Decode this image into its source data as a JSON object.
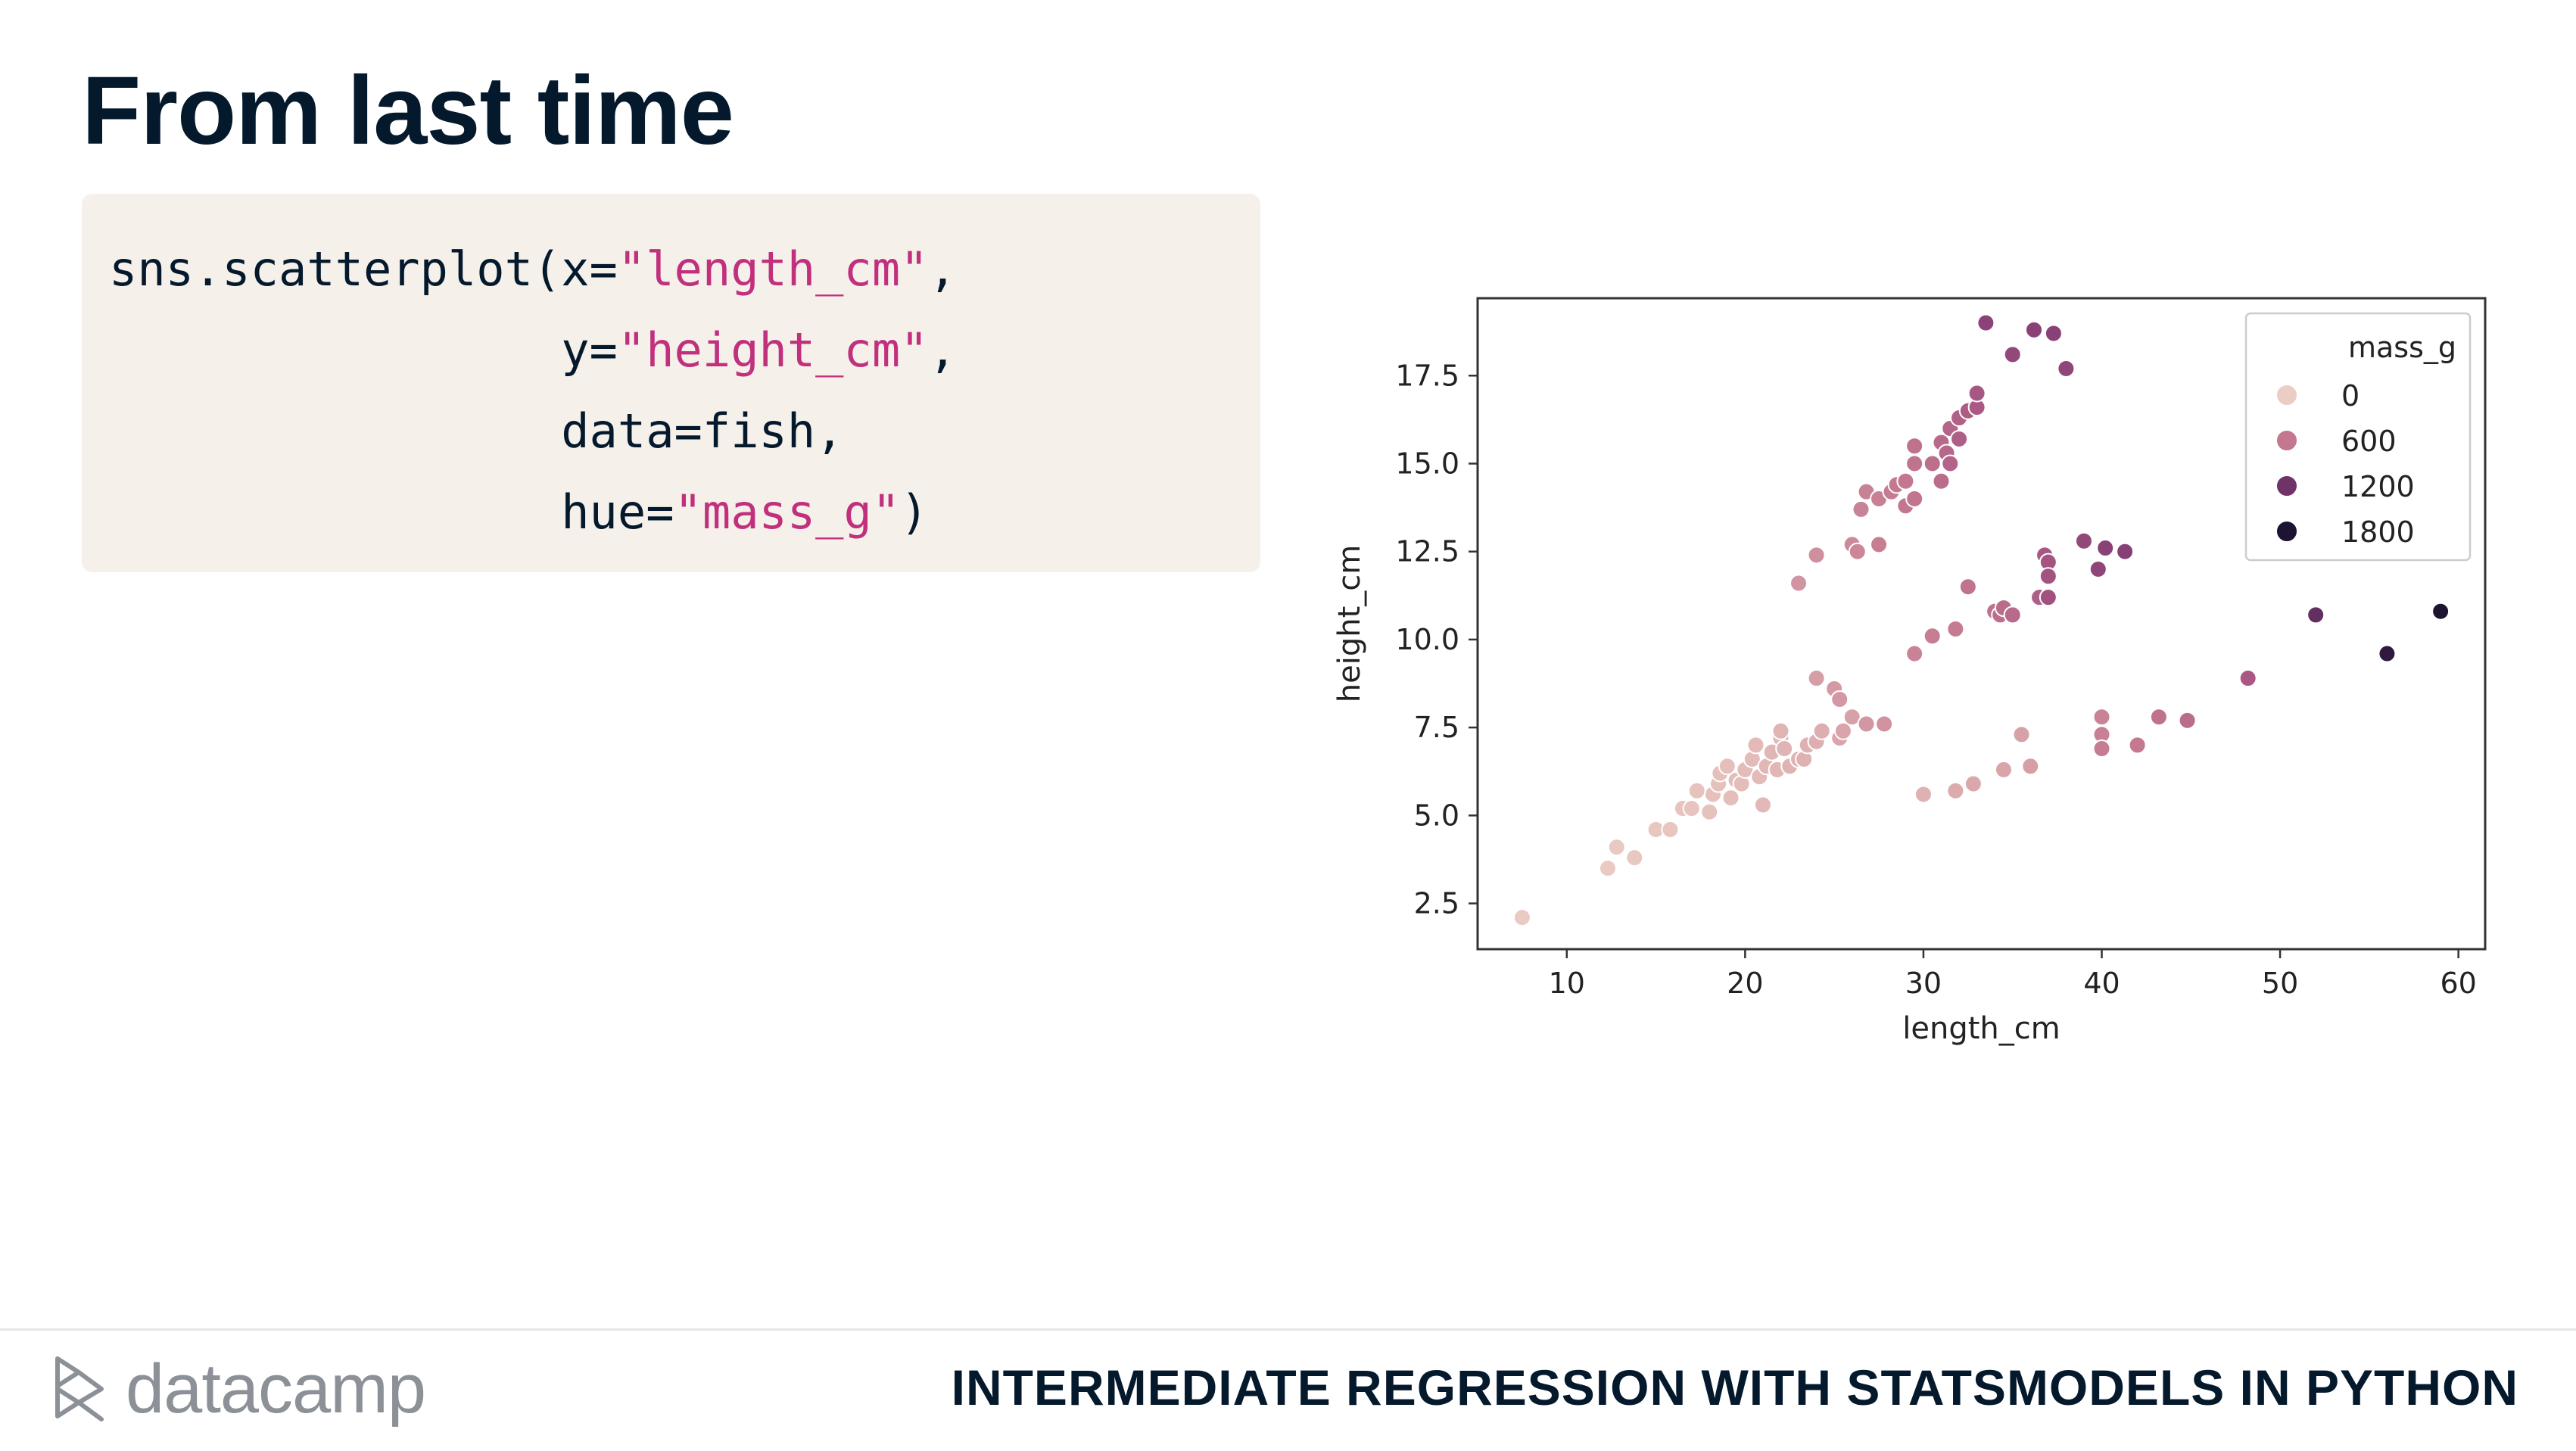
{
  "slide": {
    "title": "From last time"
  },
  "code": {
    "lines": [
      [
        {
          "t": "sns.scatterplot(x=",
          "s": false
        },
        {
          "t": "\"length_cm\"",
          "s": true
        },
        {
          "t": ",",
          "s": false
        }
      ],
      [
        {
          "t": "                y=",
          "s": false
        },
        {
          "t": "\"height_cm\"",
          "s": true
        },
        {
          "t": ",",
          "s": false
        }
      ],
      [
        {
          "t": "                data=fish,",
          "s": false
        }
      ],
      [
        {
          "t": "                hue=",
          "s": false
        },
        {
          "t": "\"mass_g\"",
          "s": true
        },
        {
          "t": ")",
          "s": false
        }
      ]
    ],
    "colors": {
      "text": "#05192d",
      "string": "#c1307d",
      "background": "#f5f1ea"
    }
  },
  "chart_data": {
    "type": "scatter",
    "xlabel": "length_cm",
    "ylabel": "height_cm",
    "xlim": [
      5,
      61.5
    ],
    "ylim": [
      1.2,
      19.7
    ],
    "xticks": [
      10,
      20,
      30,
      40,
      50,
      60
    ],
    "xtick_labels": [
      "10",
      "20",
      "30",
      "40",
      "50",
      "60"
    ],
    "yticks": [
      2.5,
      5.0,
      7.5,
      10.0,
      12.5,
      15.0,
      17.5
    ],
    "ytick_labels": [
      "2.5",
      "5.0",
      "7.5",
      "10.0",
      "12.5",
      "15.0",
      "17.5"
    ],
    "grid": false,
    "legend": {
      "title": "mass_g",
      "placement": "top-right",
      "entries": [
        {
          "label": "0",
          "color": "#ebcdc4"
        },
        {
          "label": "600",
          "color": "#c47890"
        },
        {
          "label": "1200",
          "color": "#703369"
        },
        {
          "label": "1800",
          "color": "#1d1431"
        }
      ]
    },
    "hue_colors": [
      "#ebcdc4",
      "#d9a5aa",
      "#c47890",
      "#a65582",
      "#853f74",
      "#5e2c5e",
      "#3c1f47",
      "#1d1431"
    ],
    "hue_range": [
      0,
      1800
    ],
    "points": [
      [
        7.5,
        2.1,
        10
      ],
      [
        12.3,
        3.5,
        20
      ],
      [
        12.8,
        4.1,
        25
      ],
      [
        13.8,
        3.8,
        30
      ],
      [
        15.0,
        4.6,
        40
      ],
      [
        15.8,
        4.6,
        45
      ],
      [
        16.5,
        5.2,
        55
      ],
      [
        17.0,
        5.2,
        60
      ],
      [
        17.3,
        5.7,
        65
      ],
      [
        18.0,
        5.1,
        70
      ],
      [
        18.2,
        5.6,
        75
      ],
      [
        18.5,
        5.9,
        80
      ],
      [
        18.6,
        6.2,
        85
      ],
      [
        19.0,
        6.4,
        90
      ],
      [
        19.2,
        5.5,
        95
      ],
      [
        19.5,
        6.0,
        100
      ],
      [
        19.8,
        5.9,
        105
      ],
      [
        20.0,
        6.3,
        110
      ],
      [
        20.4,
        6.6,
        115
      ],
      [
        20.6,
        7.0,
        120
      ],
      [
        20.8,
        6.1,
        125
      ],
      [
        21.0,
        5.3,
        130
      ],
      [
        21.2,
        6.4,
        135
      ],
      [
        21.5,
        6.8,
        140
      ],
      [
        21.8,
        6.3,
        145
      ],
      [
        22.0,
        7.2,
        150
      ],
      [
        22.0,
        7.4,
        155
      ],
      [
        22.2,
        6.9,
        160
      ],
      [
        22.5,
        6.4,
        165
      ],
      [
        23.0,
        6.6,
        170
      ],
      [
        23.3,
        6.6,
        175
      ],
      [
        23.5,
        7.0,
        180
      ],
      [
        24.0,
        7.1,
        190
      ],
      [
        24.3,
        7.4,
        200
      ],
      [
        25.3,
        7.2,
        250
      ],
      [
        25.5,
        7.4,
        260
      ],
      [
        26.0,
        7.8,
        280
      ],
      [
        24.0,
        8.9,
        300
      ],
      [
        25.0,
        8.6,
        320
      ],
      [
        25.3,
        8.3,
        330
      ],
      [
        26.8,
        7.6,
        340
      ],
      [
        27.8,
        7.6,
        360
      ],
      [
        23.0,
        11.6,
        350
      ],
      [
        24.0,
        12.4,
        380
      ],
      [
        26.0,
        12.7,
        420
      ],
      [
        26.3,
        12.5,
        430
      ],
      [
        26.5,
        13.7,
        450
      ],
      [
        26.8,
        14.2,
        460
      ],
      [
        27.5,
        14.0,
        470
      ],
      [
        27.5,
        12.7,
        480
      ],
      [
        28.2,
        14.2,
        500
      ],
      [
        28.5,
        14.4,
        510
      ],
      [
        29.0,
        14.5,
        520
      ],
      [
        29.0,
        13.8,
        530
      ],
      [
        29.5,
        14.0,
        540
      ],
      [
        29.5,
        15.0,
        550
      ],
      [
        29.5,
        15.5,
        560
      ],
      [
        30.5,
        15.0,
        580
      ],
      [
        31.0,
        14.5,
        600
      ],
      [
        31.0,
        15.6,
        620
      ],
      [
        31.3,
        15.3,
        630
      ],
      [
        31.5,
        16.0,
        650
      ],
      [
        31.5,
        15.0,
        660
      ],
      [
        32.0,
        16.3,
        680
      ],
      [
        32.0,
        15.7,
        700
      ],
      [
        32.5,
        16.5,
        720
      ],
      [
        33.0,
        16.6,
        740
      ],
      [
        33.0,
        17.0,
        760
      ],
      [
        33.5,
        19.0,
        980
      ],
      [
        35.0,
        18.1,
        920
      ],
      [
        36.2,
        18.8,
        1000
      ],
      [
        37.3,
        18.7,
        1000
      ],
      [
        38.0,
        17.7,
        950
      ],
      [
        30.0,
        5.6,
        180
      ],
      [
        31.8,
        5.7,
        220
      ],
      [
        32.8,
        5.9,
        240
      ],
      [
        34.5,
        6.3,
        260
      ],
      [
        35.5,
        7.3,
        280
      ],
      [
        36.0,
        6.4,
        300
      ],
      [
        40.0,
        7.8,
        450
      ],
      [
        40.0,
        7.3,
        470
      ],
      [
        40.0,
        6.9,
        490
      ],
      [
        42.0,
        7.0,
        510
      ],
      [
        43.2,
        7.8,
        560
      ],
      [
        44.8,
        7.7,
        600
      ],
      [
        48.2,
        8.9,
        750
      ],
      [
        29.5,
        9.6,
        450
      ],
      [
        30.5,
        10.1,
        480
      ],
      [
        31.8,
        10.3,
        500
      ],
      [
        32.5,
        11.5,
        550
      ],
      [
        34.0,
        10.8,
        560
      ],
      [
        34.3,
        10.7,
        580
      ],
      [
        34.5,
        10.9,
        600
      ],
      [
        35.0,
        10.7,
        620
      ],
      [
        36.5,
        11.2,
        700
      ],
      [
        36.8,
        12.4,
        760
      ],
      [
        37.0,
        12.2,
        780
      ],
      [
        37.0,
        11.8,
        800
      ],
      [
        37.0,
        11.2,
        820
      ],
      [
        39.0,
        12.8,
        920
      ],
      [
        39.8,
        12.0,
        960
      ],
      [
        40.2,
        12.6,
        1000
      ],
      [
        41.3,
        12.5,
        1015
      ],
      [
        52.0,
        10.7,
        1250
      ],
      [
        56.0,
        9.6,
        1650
      ],
      [
        59.0,
        10.8,
        1800
      ]
    ]
  },
  "footer": {
    "brand": "datacamp",
    "course": "INTERMEDIATE REGRESSION WITH STATSMODELS IN PYTHON"
  }
}
